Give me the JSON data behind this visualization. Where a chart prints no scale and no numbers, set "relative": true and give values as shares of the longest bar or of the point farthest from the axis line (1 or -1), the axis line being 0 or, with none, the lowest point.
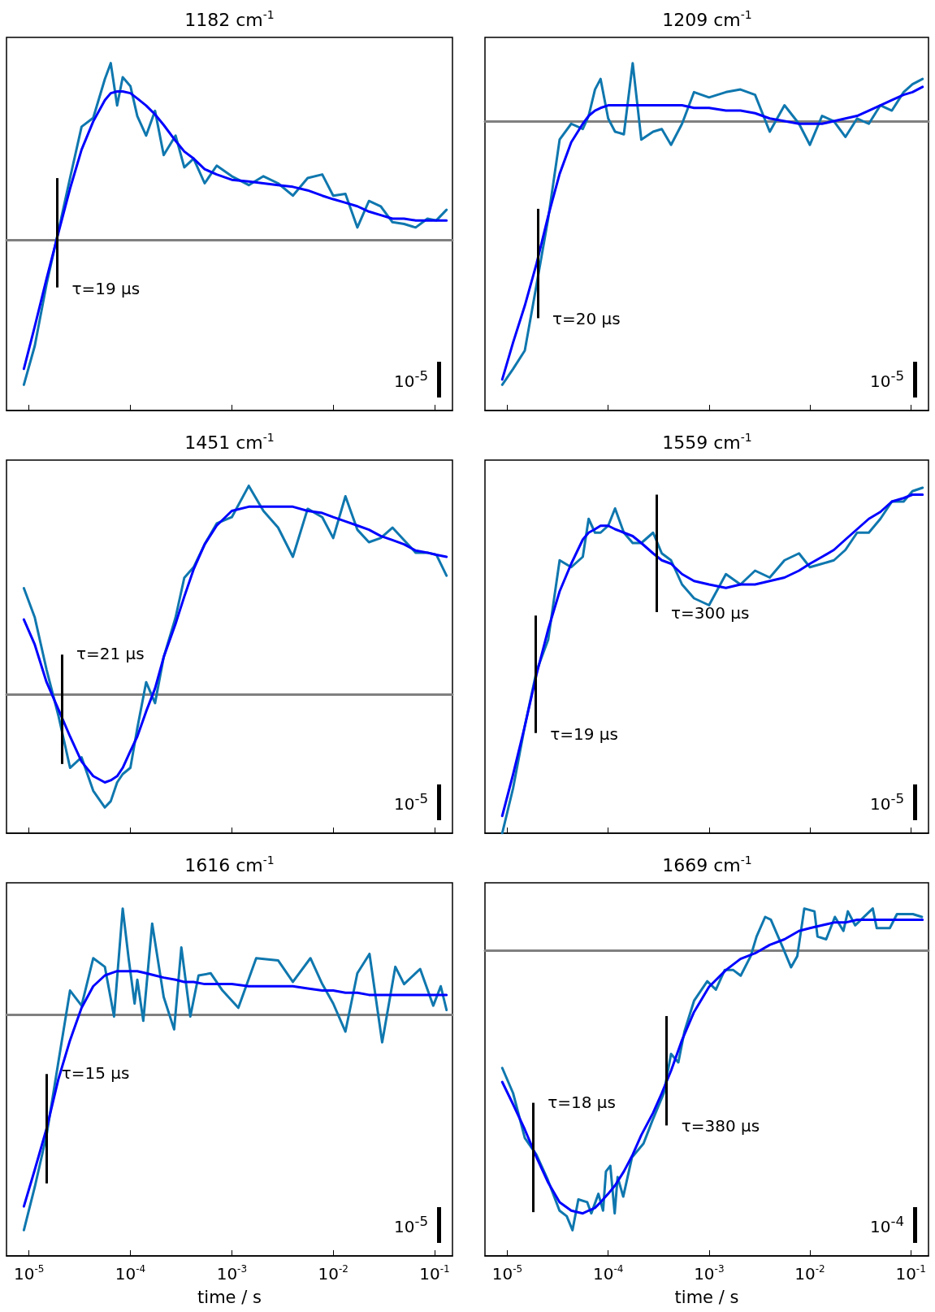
{
  "chart_data": [
    {
      "type": "line",
      "title": "1182 cm$^{-1}$",
      "relative": true,
      "log": "x",
      "xlim": [
        6e-06,
        0.15
      ],
      "tick_labels": false,
      "xticks": [
        {
          "value": 1e-05,
          "label": null
        },
        {
          "value": 0.0001,
          "label": null
        },
        {
          "value": 0.001,
          "label": null
        },
        {
          "value": 0.01,
          "label": null
        },
        {
          "value": 0.1,
          "label": null
        }
      ],
      "x": [
        8.9e-06,
        1.14e-05,
        1.49e-05,
        1.95e-05,
        2.54e-05,
        3.3e-05,
        4.3e-05,
        5.6e-05,
        6.4e-05,
        7.4e-05,
        8.4e-05,
        0.0001,
        0.000117,
        0.000143,
        0.000175,
        0.000213,
        0.000279,
        0.00034,
        0.00042,
        0.00054,
        0.00071,
        0.001,
        0.00147,
        0.00205,
        0.00286,
        0.004,
        0.0056,
        0.0078,
        0.01,
        0.0132,
        0.0173,
        0.0225,
        0.0294,
        0.0384,
        0.05,
        0.065,
        0.085,
        0.104,
        0.131
      ],
      "series": [
        {
          "color": "#0f77ae",
          "values": [
            -0.82,
            -0.6,
            -0.25,
            0.05,
            0.35,
            0.64,
            0.69,
            0.91,
            1.0,
            0.76,
            0.92,
            0.87,
            0.7,
            0.59,
            0.73,
            0.48,
            0.59,
            0.41,
            0.46,
            0.32,
            0.42,
            0.36,
            0.31,
            0.36,
            0.32,
            0.25,
            0.35,
            0.37,
            0.25,
            0.26,
            0.07,
            0.22,
            0.19,
            0.1,
            0.09,
            0.07,
            0.12,
            0.11,
            0.17
          ]
        },
        {
          "color": "#0000ff",
          "values": [
            -0.73,
            -0.49,
            -0.22,
            0.04,
            0.29,
            0.51,
            0.67,
            0.79,
            0.83,
            0.84,
            0.84,
            0.83,
            0.8,
            0.76,
            0.71,
            0.65,
            0.56,
            0.5,
            0.46,
            0.4,
            0.37,
            0.34,
            0.33,
            0.32,
            0.31,
            0.3,
            0.28,
            0.25,
            0.23,
            0.21,
            0.19,
            0.16,
            0.14,
            0.12,
            0.12,
            0.11,
            0.11,
            0.11,
            0.11
          ]
        }
      ],
      "ref_lines": [
        {
          "axis": "x",
          "value": 1.9e-05,
          "label": "τ=19 µs"
        }
      ],
      "annotations": [
        "10$^{-5}$"
      ]
    },
    {
      "type": "line",
      "title": "1209 cm$^{-1}$",
      "relative": true,
      "log": "x",
      "xlim": [
        6e-06,
        0.15
      ],
      "tick_labels": false,
      "xticks": [
        {
          "value": 1e-05,
          "label": null
        },
        {
          "value": 0.0001,
          "label": null
        },
        {
          "value": 0.001,
          "label": null
        },
        {
          "value": 0.01,
          "label": null
        },
        {
          "value": 0.1,
          "label": null
        }
      ],
      "x": [
        8.9e-06,
        1.14e-05,
        1.49e-05,
        1.95e-05,
        2.54e-05,
        3.3e-05,
        4.3e-05,
        5.6e-05,
        6.4e-05,
        7.4e-05,
        8.4e-05,
        0.0001,
        0.000117,
        0.000143,
        0.000175,
        0.000213,
        0.000279,
        0.00034,
        0.00042,
        0.00054,
        0.00071,
        0.001,
        0.00147,
        0.00205,
        0.00286,
        0.004,
        0.0056,
        0.0078,
        0.01,
        0.0132,
        0.0173,
        0.0225,
        0.0294,
        0.0384,
        0.05,
        0.065,
        0.085,
        0.104,
        0.131
      ],
      "series": [
        {
          "color": "#0f77ae",
          "values": [
            -1.0,
            -0.94,
            -0.87,
            -0.62,
            -0.37,
            -0.07,
            -0.01,
            -0.03,
            0.02,
            0.12,
            0.16,
            0.01,
            -0.04,
            -0.05,
            0.22,
            -0.07,
            -0.04,
            -0.03,
            -0.09,
            -0.01,
            0.11,
            0.09,
            0.11,
            0.12,
            0.1,
            -0.04,
            0.06,
            -0.01,
            -0.09,
            0.02,
            0.0,
            -0.06,
            0.01,
            -0.01,
            0.06,
            0.04,
            0.11,
            0.14,
            0.16
          ]
        },
        {
          "color": "#0000ff",
          "values": [
            -0.98,
            -0.84,
            -0.7,
            -0.54,
            -0.36,
            -0.2,
            -0.08,
            -0.01,
            0.02,
            0.04,
            0.05,
            0.06,
            0.06,
            0.06,
            0.06,
            0.06,
            0.06,
            0.06,
            0.06,
            0.06,
            0.05,
            0.05,
            0.04,
            0.04,
            0.03,
            0.01,
            0.0,
            -0.01,
            -0.01,
            -0.01,
            0.0,
            0.01,
            0.02,
            0.04,
            0.06,
            0.08,
            0.1,
            0.11,
            0.13
          ]
        }
      ],
      "ref_lines": [
        {
          "axis": "x",
          "value": 2e-05,
          "label": "τ=20 µs"
        }
      ],
      "annotations": [
        "10$^{-5}$"
      ]
    },
    {
      "type": "line",
      "title": "1451 cm$^{-1}$",
      "relative": true,
      "log": "x",
      "xlim": [
        6e-06,
        0.15
      ],
      "tick_labels": false,
      "xticks": [
        {
          "value": 1e-05,
          "label": null
        },
        {
          "value": 0.0001,
          "label": null
        },
        {
          "value": 0.001,
          "label": null
        },
        {
          "value": 0.01,
          "label": null
        },
        {
          "value": 0.1,
          "label": null
        }
      ],
      "x": [
        8.9e-06,
        1.14e-05,
        1.49e-05,
        1.95e-05,
        2.54e-05,
        3.3e-05,
        4.3e-05,
        5.6e-05,
        6.4e-05,
        7.4e-05,
        8.4e-05,
        0.0001,
        0.000117,
        0.000143,
        0.000175,
        0.000213,
        0.000279,
        0.00034,
        0.00042,
        0.00054,
        0.00071,
        0.001,
        0.00147,
        0.00205,
        0.00286,
        0.004,
        0.0056,
        0.0078,
        0.01,
        0.0132,
        0.0173,
        0.0225,
        0.0294,
        0.0384,
        0.05,
        0.065,
        0.085,
        0.104,
        0.131
      ],
      "series": [
        {
          "color": "#0f77ae",
          "values": [
            0.51,
            0.37,
            0.12,
            -0.1,
            -0.35,
            -0.3,
            -0.46,
            -0.54,
            -0.51,
            -0.42,
            -0.38,
            -0.35,
            -0.16,
            0.06,
            -0.04,
            0.18,
            0.37,
            0.56,
            0.61,
            0.72,
            0.82,
            0.85,
            1.0,
            0.88,
            0.8,
            0.66,
            0.89,
            0.85,
            0.75,
            0.95,
            0.79,
            0.73,
            0.75,
            0.8,
            0.74,
            0.68,
            0.68,
            0.67,
            0.57
          ]
        },
        {
          "color": "#0000ff",
          "values": [
            0.36,
            0.24,
            0.06,
            -0.07,
            -0.2,
            -0.32,
            -0.39,
            -0.42,
            -0.41,
            -0.39,
            -0.35,
            -0.27,
            -0.2,
            -0.08,
            0.03,
            0.18,
            0.34,
            0.47,
            0.6,
            0.72,
            0.81,
            0.88,
            0.9,
            0.9,
            0.9,
            0.9,
            0.88,
            0.87,
            0.85,
            0.83,
            0.81,
            0.79,
            0.76,
            0.74,
            0.72,
            0.69,
            0.68,
            0.67,
            0.66
          ]
        }
      ],
      "ref_lines": [
        {
          "axis": "x",
          "value": 2.1e-05,
          "label": "τ=21 µs"
        }
      ],
      "annotations": [
        "10$^{-5}$"
      ]
    },
    {
      "type": "line",
      "title": "1559 cm$^{-1}$",
      "relative": true,
      "log": "x",
      "xlim": [
        6e-06,
        0.15
      ],
      "tick_labels": false,
      "xticks": [
        {
          "value": 1e-05,
          "label": null
        },
        {
          "value": 0.0001,
          "label": null
        },
        {
          "value": 0.001,
          "label": null
        },
        {
          "value": 0.01,
          "label": null
        },
        {
          "value": 0.1,
          "label": null
        }
      ],
      "x": [
        8.9e-06,
        1.14e-05,
        1.49e-05,
        1.95e-05,
        2.54e-05,
        3.3e-05,
        4.3e-05,
        5.6e-05,
        6.4e-05,
        7.4e-05,
        8.4e-05,
        0.0001,
        0.000117,
        0.000143,
        0.000175,
        0.000213,
        0.000279,
        0.00034,
        0.00042,
        0.00054,
        0.00071,
        0.001,
        0.00147,
        0.00205,
        0.00286,
        0.004,
        0.0056,
        0.0078,
        0.01,
        0.0132,
        0.0173,
        0.0225,
        0.0294,
        0.0384,
        0.05,
        0.065,
        0.085,
        0.104,
        0.131
      ],
      "series": [
        {
          "color": "#0f77ae",
          "values": [
            0.0,
            0.13,
            0.31,
            0.47,
            0.56,
            0.79,
            0.77,
            0.8,
            0.91,
            0.87,
            0.87,
            0.89,
            0.94,
            0.87,
            0.84,
            0.84,
            0.87,
            0.81,
            0.79,
            0.72,
            0.68,
            0.66,
            0.75,
            0.72,
            0.76,
            0.74,
            0.79,
            0.81,
            0.77,
            0.78,
            0.79,
            0.82,
            0.87,
            0.87,
            0.91,
            0.96,
            0.96,
            0.99,
            1.0
          ]
        },
        {
          "color": "#0000ff",
          "values": [
            0.05,
            0.17,
            0.31,
            0.46,
            0.59,
            0.7,
            0.78,
            0.85,
            0.87,
            0.88,
            0.89,
            0.89,
            0.88,
            0.87,
            0.86,
            0.84,
            0.81,
            0.79,
            0.78,
            0.75,
            0.73,
            0.72,
            0.71,
            0.72,
            0.72,
            0.73,
            0.74,
            0.76,
            0.78,
            0.8,
            0.82,
            0.85,
            0.88,
            0.91,
            0.93,
            0.96,
            0.97,
            0.98,
            0.98
          ]
        }
      ],
      "ref_lines": [
        {
          "axis": "x",
          "value": 1.9e-05,
          "label": "τ=19 µs"
        },
        {
          "axis": "x",
          "value": 0.0003,
          "label": "τ=300 µs"
        }
      ],
      "annotations": [
        "10$^{-5}$"
      ]
    },
    {
      "type": "line",
      "title": "1616 cm$^{-1}$",
      "xlabel": "time / s",
      "relative": true,
      "log": "x",
      "xlim": [
        6e-06,
        0.15
      ],
      "tick_labels": "x",
      "xticks": [
        {
          "value": 1e-05,
          "label": "10$^{-5}$"
        },
        {
          "value": 0.0001,
          "label": "10$^{-4}$"
        },
        {
          "value": 0.001,
          "label": "10$^{-3}$"
        },
        {
          "value": 0.01,
          "label": "10$^{-2}$"
        },
        {
          "value": 0.1,
          "label": "10$^{-1}$"
        }
      ],
      "x": [
        8.9e-06,
        1.14e-05,
        1.49e-05,
        1.95e-05,
        2.54e-05,
        3.3e-05,
        4.3e-05,
        5.6e-05,
        6.4e-05,
        7.4e-05,
        8.4e-05,
        0.0001,
        0.000117,
        0.000143,
        0.000175,
        0.000213,
        0.000279,
        0.00034,
        0.00042,
        0.00054,
        0.00071,
        0.001,
        0.00147,
        0.00205,
        0.00286,
        0.004,
        0.0056,
        0.0078,
        0.01,
        0.0132,
        0.0173,
        0.0225,
        0.0294,
        0.0384,
        0.05,
        0.065,
        0.085,
        0.104,
        0.131
      ],
      "series": [
        {
          "color": "#0f77ae",
          "x": [
            8.9e-06,
            1.14e-05,
            1.49e-05,
            1.95e-05,
            2.54e-05,
            3.3e-05,
            4.3e-05,
            5.6e-05,
            6.9e-05,
            8.4e-05,
            9.6e-05,
            0.00011,
            0.000117,
            0.000134,
            0.000164,
            0.000213,
            0.00027,
            0.000318,
            0.00039,
            0.00047,
            0.00062,
            0.00081,
            0.00116,
            0.00174,
            0.00286,
            0.004,
            0.00596,
            0.0078,
            0.01,
            0.0132,
            0.0173,
            0.0228,
            0.0304,
            0.041,
            0.05,
            0.072,
            0.097,
            0.115,
            0.131
          ],
          "values": [
            -1.0,
            -0.8,
            -0.56,
            -0.22,
            0.11,
            0.04,
            0.26,
            0.22,
            -0.01,
            0.49,
            0.26,
            0.05,
            0.16,
            -0.03,
            0.42,
            0.08,
            -0.07,
            0.31,
            -0.01,
            0.18,
            0.19,
            0.11,
            0.03,
            0.26,
            0.25,
            0.15,
            0.26,
            0.14,
            0.05,
            -0.08,
            0.19,
            0.28,
            -0.13,
            0.22,
            0.14,
            0.21,
            0.04,
            0.13,
            0.02
          ]
        },
        {
          "color": "#0000ff",
          "values": [
            -0.89,
            -0.72,
            -0.53,
            -0.3,
            -0.12,
            0.03,
            0.13,
            0.18,
            0.19,
            0.2,
            0.2,
            0.2,
            0.2,
            0.19,
            0.18,
            0.17,
            0.16,
            0.15,
            0.15,
            0.14,
            0.14,
            0.14,
            0.13,
            0.13,
            0.13,
            0.13,
            0.12,
            0.11,
            0.11,
            0.1,
            0.1,
            0.09,
            0.09,
            0.09,
            0.09,
            0.09,
            0.09,
            0.09,
            0.09
          ]
        }
      ],
      "ref_lines": [
        {
          "axis": "x",
          "value": 1.5e-05,
          "label": "τ=15 µs"
        }
      ],
      "annotations": [
        "10$^{-5}$"
      ]
    },
    {
      "type": "line",
      "title": "1669 cm$^{-1}$",
      "xlabel": "time / s",
      "relative": true,
      "log": "x",
      "xlim": [
        6e-06,
        0.15
      ],
      "tick_labels": "x",
      "xticks": [
        {
          "value": 1e-05,
          "label": "10$^{-5}$"
        },
        {
          "value": 0.0001,
          "label": "10$^{-4}$"
        },
        {
          "value": 0.001,
          "label": "10$^{-3}$"
        },
        {
          "value": 0.01,
          "label": "10$^{-2}$"
        },
        {
          "value": 0.1,
          "label": "10$^{-1}$"
        }
      ],
      "x": [
        8.9e-06,
        1.14e-05,
        1.49e-05,
        1.95e-05,
        2.54e-05,
        3.3e-05,
        4.3e-05,
        5.6e-05,
        6.4e-05,
        7.4e-05,
        8.4e-05,
        0.0001,
        0.000117,
        0.000143,
        0.000175,
        0.000213,
        0.000279,
        0.00034,
        0.00042,
        0.00054,
        0.00071,
        0.001,
        0.00147,
        0.00205,
        0.00286,
        0.004,
        0.0056,
        0.0078,
        0.01,
        0.0132,
        0.0173,
        0.0225,
        0.0294,
        0.0384,
        0.05,
        0.065,
        0.085,
        0.104,
        0.131
      ],
      "series": [
        {
          "color": "#0f77ae",
          "x": [
            8.9e-06,
            1.14e-05,
            1.49e-05,
            1.94e-05,
            2.52e-05,
            3.29e-05,
            3.88e-05,
            4.43e-05,
            5.06e-05,
            6.2e-05,
            6.8e-05,
            8e-05,
            8.9e-05,
            9.5e-05,
            0.000105,
            0.000116,
            0.000124,
            0.000141,
            0.000172,
            0.000224,
            0.000273,
            0.000356,
            0.00042,
            0.000496,
            0.00057,
            0.00071,
            0.00096,
            0.00117,
            0.00143,
            0.00174,
            0.00206,
            0.00259,
            0.00296,
            0.0036,
            0.0041,
            0.0054,
            0.0065,
            0.0075,
            0.0088,
            0.0111,
            0.0119,
            0.0145,
            0.0177,
            0.0215,
            0.0238,
            0.0281,
            0.042,
            0.046,
            0.062,
            0.073,
            0.105,
            0.129
          ],
          "values": [
            -0.42,
            -0.51,
            -0.67,
            -0.73,
            -0.82,
            -0.93,
            -0.95,
            -1.0,
            -0.89,
            -0.9,
            -0.94,
            -0.87,
            -0.93,
            -0.79,
            -0.77,
            -0.94,
            -0.81,
            -0.88,
            -0.74,
            -0.69,
            -0.61,
            -0.51,
            -0.37,
            -0.4,
            -0.29,
            -0.18,
            -0.11,
            -0.14,
            -0.07,
            -0.07,
            -0.09,
            -0.02,
            0.05,
            0.12,
            0.11,
            0.01,
            -0.06,
            -0.02,
            0.15,
            0.14,
            0.05,
            0.04,
            0.12,
            0.07,
            0.14,
            0.09,
            0.15,
            0.08,
            0.08,
            0.13,
            0.13,
            0.12
          ]
        },
        {
          "color": "#0000ff",
          "values": [
            -0.47,
            -0.55,
            -0.64,
            -0.74,
            -0.83,
            -0.9,
            -0.93,
            -0.94,
            -0.93,
            -0.92,
            -0.9,
            -0.87,
            -0.84,
            -0.79,
            -0.73,
            -0.66,
            -0.58,
            -0.51,
            -0.43,
            -0.32,
            -0.22,
            -0.13,
            -0.07,
            -0.03,
            -0.01,
            0.02,
            0.04,
            0.07,
            0.08,
            0.09,
            0.1,
            0.1,
            0.11,
            0.11,
            0.11,
            0.11,
            0.11,
            0.11,
            0.11
          ]
        }
      ],
      "ref_lines": [
        {
          "axis": "x",
          "value": 1.8e-05,
          "label": "τ=18 µs"
        },
        {
          "axis": "x",
          "value": 0.00038,
          "label": "τ=380 µs"
        }
      ],
      "annotations": [
        "10$^{-4}$"
      ]
    }
  ]
}
